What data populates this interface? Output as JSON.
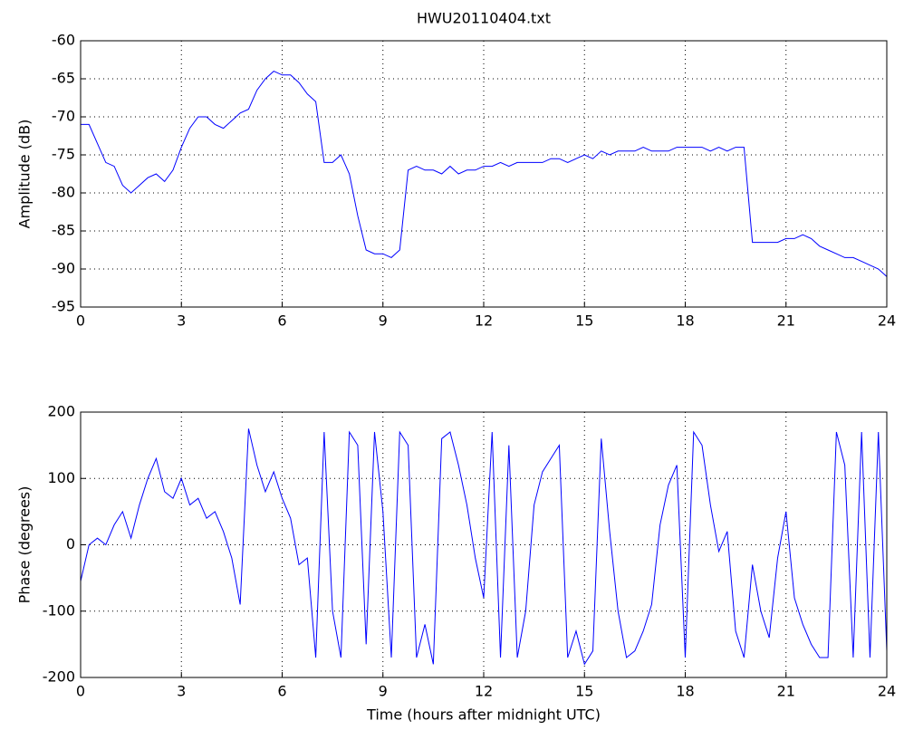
{
  "chart_data": [
    {
      "type": "line",
      "title": "HWU20110404.txt",
      "y_label": "Amplitude (dB)",
      "x": [
        0,
        0.25,
        0.5,
        0.75,
        1,
        1.25,
        1.5,
        1.75,
        2,
        2.25,
        2.5,
        2.75,
        3,
        3.25,
        3.5,
        3.75,
        4,
        4.25,
        4.5,
        4.75,
        5,
        5.25,
        5.5,
        5.75,
        6,
        6.25,
        6.5,
        6.75,
        7,
        7.25,
        7.5,
        7.75,
        8,
        8.25,
        8.5,
        8.75,
        9,
        9.25,
        9.5,
        9.75,
        10,
        10.25,
        10.5,
        10.75,
        11,
        11.25,
        11.5,
        11.75,
        12,
        12.25,
        12.5,
        12.75,
        13,
        13.25,
        13.5,
        13.75,
        14,
        14.25,
        14.5,
        14.75,
        15,
        15.25,
        15.5,
        15.75,
        16,
        16.25,
        16.5,
        16.75,
        17,
        17.25,
        17.5,
        17.75,
        18,
        18.25,
        18.5,
        18.75,
        19,
        19.25,
        19.5,
        19.75,
        20,
        20.25,
        20.5,
        20.75,
        21,
        21.25,
        21.5,
        21.75,
        22,
        22.25,
        22.5,
        22.75,
        23,
        23.25,
        23.5,
        23.75,
        24
      ],
      "series": [
        {
          "color": "#0000ff",
          "values": [
            -71,
            -71,
            -73.5,
            -76,
            -76.5,
            -79,
            -80,
            -79,
            -78,
            -77.5,
            -78.5,
            -77,
            -74,
            -71.5,
            -70,
            -70,
            -71,
            -71.5,
            -70.5,
            -69.5,
            -69,
            -66.5,
            -65,
            -64,
            -64.5,
            -64.5,
            -65.5,
            -67,
            -68,
            -76,
            -76,
            -75,
            -77.5,
            -83,
            -87.5,
            -88,
            -88,
            -88.5,
            -87.5,
            -77,
            -76.5,
            -77,
            -77,
            -77.5,
            -76.5,
            -77.5,
            -77,
            -77,
            -76.5,
            -76.5,
            -76,
            -76.5,
            -76,
            -76,
            -76,
            -76,
            -75.5,
            -75.5,
            -76,
            -75.5,
            -75,
            -75.5,
            -74.5,
            -75,
            -74.5,
            -74.5,
            -74.5,
            -74,
            -74.5,
            -74.5,
            -74.5,
            -74,
            -74,
            -74,
            -74,
            -74.5,
            -74,
            -74.5,
            -74,
            -74,
            -86.5,
            -86.5,
            -86.5,
            -86.5,
            -86,
            -86,
            -85.5,
            -86,
            -87,
            -87.5,
            -88,
            -88.5,
            -88.5,
            -89,
            -89.5,
            -90,
            -91
          ]
        }
      ],
      "xlim": [
        0,
        24
      ],
      "xticks": [
        0,
        3,
        6,
        9,
        12,
        15,
        18,
        21,
        24
      ],
      "ylim": [
        -95,
        -60
      ],
      "yticks": [
        -95,
        -90,
        -85,
        -80,
        -75,
        -70,
        -65,
        -60
      ],
      "grid": true
    },
    {
      "type": "line",
      "x_label": "Time (hours after midnight UTC)",
      "y_label": "Phase (degrees)",
      "x": [
        0,
        0.25,
        0.5,
        0.75,
        1,
        1.25,
        1.5,
        1.75,
        2,
        2.25,
        2.5,
        2.75,
        3,
        3.25,
        3.5,
        3.75,
        4,
        4.25,
        4.5,
        4.75,
        5,
        5.25,
        5.5,
        5.75,
        6,
        6.25,
        6.5,
        6.75,
        7,
        7.25,
        7.5,
        7.75,
        8,
        8.25,
        8.5,
        8.75,
        9,
        9.25,
        9.5,
        9.75,
        10,
        10.25,
        10.5,
        10.75,
        11,
        11.25,
        11.5,
        11.75,
        12,
        12.25,
        12.5,
        12.75,
        13,
        13.25,
        13.5,
        13.75,
        14,
        14.25,
        14.5,
        14.75,
        15,
        15.25,
        15.5,
        15.75,
        16,
        16.25,
        16.5,
        16.75,
        17,
        17.25,
        17.5,
        17.75,
        18,
        18.25,
        18.5,
        18.75,
        19,
        19.25,
        19.5,
        19.75,
        20,
        20.25,
        20.5,
        20.75,
        21,
        21.25,
        21.5,
        21.75,
        22,
        22.25,
        22.5,
        22.75,
        23,
        23.25,
        23.5,
        23.75,
        24
      ],
      "series": [
        {
          "color": "#0000ff",
          "values": [
            -55,
            0,
            10,
            0,
            30,
            50,
            10,
            60,
            100,
            130,
            80,
            70,
            100,
            60,
            70,
            40,
            50,
            20,
            -20,
            -90,
            175,
            120,
            80,
            110,
            70,
            40,
            -30,
            -20,
            -170,
            170,
            -100,
            -170,
            170,
            150,
            -150,
            170,
            50,
            -170,
            170,
            150,
            -170,
            -120,
            -180,
            160,
            170,
            120,
            60,
            -20,
            -80,
            170,
            -170,
            150,
            -170,
            -100,
            60,
            110,
            130,
            150,
            -170,
            -130,
            -180,
            -160,
            160,
            20,
            -100,
            -170,
            -160,
            -130,
            -90,
            30,
            90,
            120,
            -170,
            170,
            150,
            60,
            -10,
            20,
            -130,
            -170,
            -30,
            -100,
            -140,
            -20,
            50,
            -80,
            -120,
            -150,
            -170,
            -170,
            170,
            120,
            -170,
            170,
            -170,
            170,
            -160
          ]
        }
      ],
      "xlim": [
        0,
        24
      ],
      "xticks": [
        0,
        3,
        6,
        9,
        12,
        15,
        18,
        21,
        24
      ],
      "ylim": [
        -200,
        200
      ],
      "yticks": [
        -200,
        -100,
        0,
        100,
        200
      ],
      "grid": true
    }
  ]
}
